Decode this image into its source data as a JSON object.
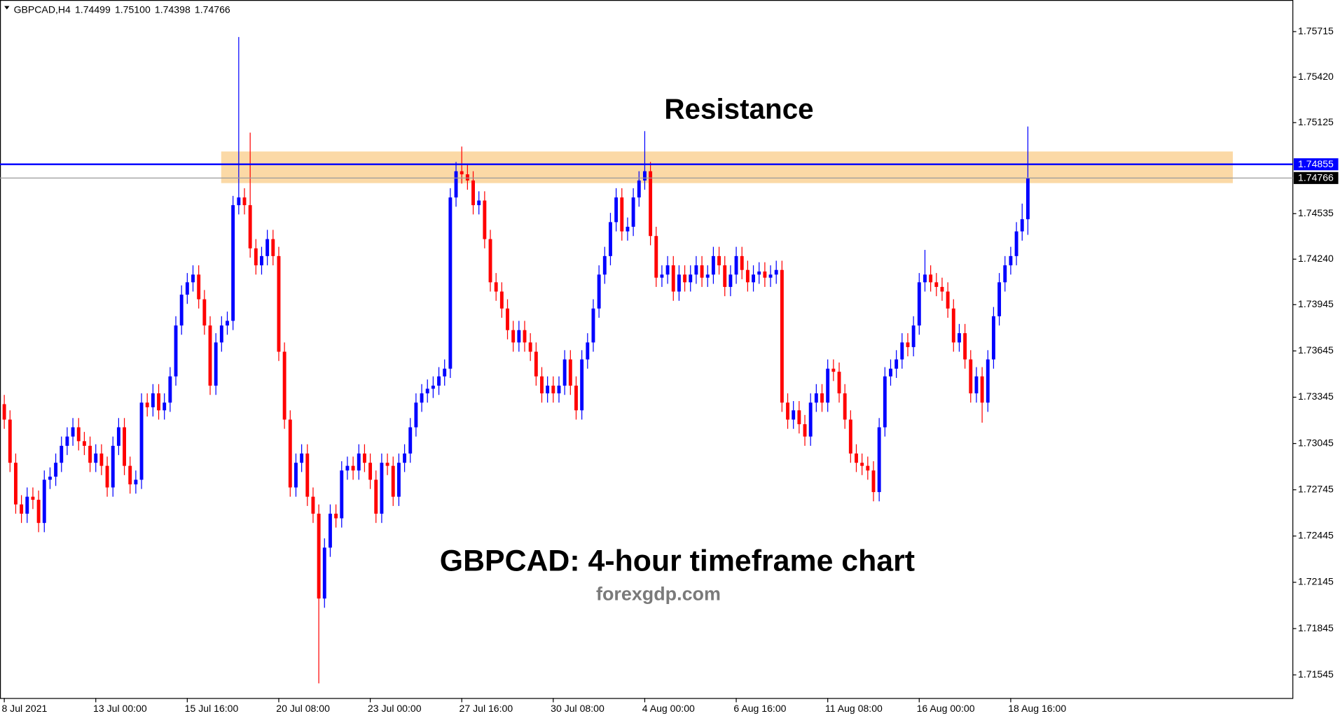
{
  "chart_data": {
    "type": "candlestick",
    "symbol": "GBPCAD,H4",
    "header_ohlc": [
      1.74499,
      {
        "value": 1.751,
        "label": "1.75100"
      },
      1.74398,
      1.74766
    ],
    "annotations": [
      "Resistance",
      "GBPCAD: 4-hour timeframe chart",
      "forexgdp.com"
    ],
    "up_color": "#0000ff",
    "down_color": "#ff0000",
    "ylim": [
      1.71395,
      1.7592
    ],
    "yticks": [
      1.75715,
      {
        "value": 1.7542,
        "label": "1.75420"
      },
      1.75125,
      1.74535,
      {
        "value": 1.7424,
        "label": "1.74240"
      },
      1.73945,
      1.73645,
      1.73345,
      1.73045,
      1.72745,
      1.72445,
      1.72145,
      1.71845,
      1.71545
    ],
    "price_lines": [
      {
        "value": 1.74855,
        "color": "#0000ff"
      },
      {
        "value": 1.74766,
        "color": "#9a9a9a"
      }
    ],
    "zone": {
      "from": 1.74733,
      "to": 1.74938,
      "color": "#fbd9a6"
    },
    "categories": [
      "8 Jul 2021",
      null,
      null,
      null,
      null,
      null,
      null,
      null,
      null,
      null,
      null,
      null,
      null,
      null,
      null,
      null,
      "13 Jul 00:00",
      null,
      null,
      null,
      null,
      null,
      null,
      null,
      null,
      null,
      null,
      null,
      null,
      null,
      null,
      null,
      "15 Jul 16:00",
      null,
      null,
      null,
      null,
      null,
      null,
      null,
      null,
      null,
      null,
      null,
      null,
      null,
      null,
      null,
      "20 Jul 08:00",
      null,
      null,
      null,
      null,
      null,
      null,
      null,
      null,
      null,
      null,
      null,
      null,
      null,
      null,
      null,
      "23 Jul 00:00",
      null,
      null,
      null,
      null,
      null,
      null,
      null,
      null,
      null,
      null,
      null,
      null,
      null,
      null,
      null,
      "27 Jul 16:00",
      null,
      null,
      null,
      null,
      null,
      null,
      null,
      null,
      null,
      null,
      null,
      null,
      null,
      null,
      null,
      "30 Jul 08:00",
      null,
      null,
      null,
      null,
      null,
      null,
      null,
      null,
      null,
      null,
      null,
      null,
      null,
      null,
      null,
      "4 Aug 00:00",
      null,
      null,
      null,
      null,
      null,
      null,
      null,
      null,
      null,
      null,
      null,
      null,
      null,
      null,
      null,
      "6 Aug 16:00",
      null,
      null,
      null,
      null,
      null,
      null,
      null,
      null,
      null,
      null,
      null,
      null,
      null,
      null,
      null,
      "11 Aug 08:00",
      null,
      null,
      null,
      null,
      null,
      null,
      null,
      null,
      null,
      null,
      null,
      null,
      null,
      null,
      null,
      "16 Aug 00:00",
      null,
      null,
      null,
      null,
      null,
      null,
      null,
      null,
      null,
      null,
      null,
      null,
      null,
      null,
      null,
      "18 Aug 16:00",
      null,
      null,
      null
    ],
    "open": [
      1.733,
      1.732,
      1.7292,
      1.7265,
      1.7259,
      1.727,
      1.7268,
      1.7253,
      1.7281,
      1.7283,
      1.7292,
      1.7303,
      1.7309,
      1.7315,
      1.7306,
      1.7303,
      1.7292,
      1.7298,
      1.729,
      1.7276,
      1.7303,
      1.7315,
      1.729,
      1.7278,
      1.7281,
      1.7331,
      1.7328,
      1.7337,
      1.7326,
      1.7331,
      1.7348,
      1.7381,
      1.7401,
      1.7409,
      1.7414,
      1.7398,
      1.7381,
      1.7342,
      1.737,
      1.7381,
      1.7384,
      1.7459,
      1.7464,
      1.7459,
      1.7431,
      1.742,
      1.7426,
      1.7437,
      1.7426,
      1.7364,
      1.732,
      1.7276,
      1.7292,
      1.7298,
      1.727,
      1.7259,
      1.7204,
      1.7237,
      1.7259,
      1.7256,
      1.7287,
      1.729,
      1.7287,
      1.7298,
      1.7292,
      1.7281,
      1.7259,
      1.7292,
      1.729,
      1.727,
      1.7292,
      1.7298,
      1.7315,
      1.7331,
      1.7337,
      1.734,
      1.7342,
      1.7348,
      1.7353,
      1.7464,
      1.7481,
      1.7479,
      1.7475,
      1.7459,
      1.7462,
      1.7437,
      1.7409,
      1.7403,
      1.7392,
      1.7378,
      1.737,
      1.7378,
      1.737,
      1.7364,
      1.7348,
      1.7337,
      1.7342,
      1.7337,
      1.7342,
      1.7359,
      1.7342,
      1.7326,
      1.7359,
      1.737,
      1.7392,
      1.7414,
      1.7426,
      1.7448,
      1.7464,
      1.7442,
      1.7445,
      1.7464,
      1.7475,
      1.7481,
      1.7439,
      1.7412,
      1.7414,
      1.742,
      1.7403,
      1.7414,
      1.7409,
      1.7414,
      1.742,
      1.7412,
      1.7414,
      1.7426,
      1.742,
      1.7406,
      1.7414,
      1.7426,
      1.7417,
      1.7409,
      1.7414,
      1.7416,
      1.7412,
      1.7414,
      1.7417,
      1.7331,
      1.732,
      1.7326,
      1.7317,
      1.7309,
      1.7331,
      1.7337,
      1.7331,
      1.7353,
      1.7351,
      1.7337,
      1.732,
      1.7298,
      1.7292,
      1.729,
      1.7287,
      1.7273,
      1.7315,
      1.7348,
      1.7353,
      1.7359,
      1.737,
      1.7367,
      1.7381,
      1.7409,
      1.7414,
      1.7409,
      1.7406,
      1.7403,
      1.7392,
      1.737,
      1.7376,
      1.7359,
      1.7337,
      1.7348,
      1.7331,
      1.7359,
      1.7387,
      1.7409,
      1.742,
      1.7426,
      1.7442,
      1.74499
    ],
    "high": [
      1.7336,
      1.7326,
      1.7298,
      1.7271,
      1.7276,
      1.7276,
      1.7274,
      1.7287,
      1.7289,
      1.7298,
      1.7309,
      1.7315,
      1.7321,
      1.7321,
      1.7312,
      1.7309,
      1.7304,
      1.7304,
      1.7296,
      1.7309,
      1.7321,
      1.7321,
      1.7296,
      1.7287,
      1.7337,
      1.7337,
      1.7343,
      1.7343,
      1.7337,
      1.7354,
      1.7387,
      1.7407,
      1.7415,
      1.742,
      1.742,
      1.7404,
      1.7387,
      1.7376,
      1.7387,
      1.739,
      1.7465,
      1.7568,
      1.747,
      1.7506,
      1.7437,
      1.7432,
      1.7443,
      1.7443,
      1.7432,
      1.737,
      1.7326,
      1.7298,
      1.7304,
      1.7304,
      1.7276,
      1.7265,
      1.7243,
      1.7265,
      1.7265,
      1.7293,
      1.7296,
      1.7296,
      1.7304,
      1.7304,
      1.7298,
      1.7287,
      1.7298,
      1.7298,
      1.7296,
      1.7298,
      1.7304,
      1.7321,
      1.7337,
      1.7343,
      1.7346,
      1.7348,
      1.7354,
      1.7359,
      1.747,
      1.7487,
      1.7497,
      1.7485,
      1.7481,
      1.7468,
      1.7468,
      1.7443,
      1.7415,
      1.7409,
      1.7398,
      1.7384,
      1.7384,
      1.7384,
      1.7376,
      1.737,
      1.7354,
      1.7348,
      1.7348,
      1.7348,
      1.7365,
      1.7365,
      1.7348,
      1.7365,
      1.7376,
      1.7398,
      1.742,
      1.7432,
      1.7454,
      1.747,
      1.747,
      1.7451,
      1.747,
      1.7481,
      1.7507,
      1.7487,
      1.7445,
      1.742,
      1.7426,
      1.7426,
      1.742,
      1.742,
      1.742,
      1.7426,
      1.7426,
      1.742,
      1.7432,
      1.7432,
      1.7426,
      1.742,
      1.7432,
      1.7432,
      1.7423,
      1.742,
      1.7422,
      1.7422,
      1.742,
      1.7423,
      1.7423,
      1.7337,
      1.7332,
      1.7332,
      1.7323,
      1.7337,
      1.7343,
      1.7343,
      1.7359,
      1.7359,
      1.7357,
      1.7343,
      1.7326,
      1.7304,
      1.7298,
      1.7296,
      1.7293,
      1.7321,
      1.7354,
      1.7359,
      1.7365,
      1.7376,
      1.7376,
      1.7387,
      1.7415,
      1.743,
      1.742,
      1.7415,
      1.7412,
      1.7409,
      1.7398,
      1.7382,
      1.7382,
      1.7365,
      1.7354,
      1.7354,
      1.7365,
      1.7393,
      1.7415,
      1.7426,
      1.7432,
      1.7448,
      1.746,
      1.751
    ],
    "low": [
      1.7314,
      1.7286,
      1.7259,
      1.7253,
      1.7253,
      1.7262,
      1.7247,
      1.7247,
      1.7275,
      1.7277,
      1.7286,
      1.7297,
      1.7303,
      1.73,
      1.7297,
      1.7286,
      1.7286,
      1.7284,
      1.727,
      1.727,
      1.7297,
      1.7284,
      1.7272,
      1.7272,
      1.7275,
      1.7322,
      1.7322,
      1.732,
      1.732,
      1.7325,
      1.7342,
      1.7375,
      1.7395,
      1.7403,
      1.7392,
      1.7375,
      1.7336,
      1.7336,
      1.7364,
      1.7375,
      1.7378,
      1.7453,
      1.7453,
      1.7425,
      1.7414,
      1.7414,
      1.742,
      1.742,
      1.7358,
      1.7314,
      1.727,
      1.727,
      1.7286,
      1.7264,
      1.7253,
      1.7149,
      1.7198,
      1.7231,
      1.725,
      1.725,
      1.7281,
      1.7281,
      1.7281,
      1.7286,
      1.7275,
      1.7253,
      1.7253,
      1.7284,
      1.7264,
      1.7264,
      1.7286,
      1.7292,
      1.7309,
      1.7325,
      1.7331,
      1.7334,
      1.7336,
      1.7342,
      1.7347,
      1.7458,
      1.7473,
      1.7469,
      1.7453,
      1.7453,
      1.7431,
      1.7403,
      1.7397,
      1.7386,
      1.7372,
      1.7364,
      1.7364,
      1.7364,
      1.7358,
      1.7342,
      1.7331,
      1.7331,
      1.7331,
      1.7331,
      1.7336,
      1.7336,
      1.732,
      1.732,
      1.7353,
      1.7364,
      1.7386,
      1.7408,
      1.742,
      1.7442,
      1.7436,
      1.7436,
      1.7439,
      1.7458,
      1.7469,
      1.7433,
      1.7406,
      1.7406,
      1.7408,
      1.7397,
      1.7397,
      1.7403,
      1.7403,
      1.7408,
      1.7406,
      1.7406,
      1.7408,
      1.7414,
      1.74,
      1.74,
      1.7408,
      1.7411,
      1.7403,
      1.7403,
      1.7408,
      1.7406,
      1.7406,
      1.7408,
      1.7325,
      1.7314,
      1.7314,
      1.7311,
      1.7303,
      1.7303,
      1.7325,
      1.7325,
      1.7325,
      1.7345,
      1.7331,
      1.7314,
      1.7292,
      1.7286,
      1.7284,
      1.7281,
      1.7267,
      1.7267,
      1.7309,
      1.7342,
      1.7347,
      1.7353,
      1.7361,
      1.7361,
      1.7375,
      1.7403,
      1.7403,
      1.74,
      1.7397,
      1.7386,
      1.7364,
      1.7364,
      1.7353,
      1.7331,
      1.7331,
      1.7318,
      1.7325,
      1.7353,
      1.7381,
      1.7403,
      1.7414,
      1.742,
      1.7436,
      1.74398
    ],
    "close": [
      1.732,
      1.7292,
      1.7265,
      1.7259,
      1.727,
      1.7268,
      1.7253,
      1.7281,
      1.7283,
      1.7292,
      1.7303,
      1.7309,
      1.7315,
      1.7306,
      1.7303,
      1.7292,
      1.7298,
      1.729,
      1.7276,
      1.7303,
      1.7315,
      1.729,
      1.7278,
      1.7281,
      1.7331,
      1.7328,
      1.7337,
      1.7326,
      1.7331,
      1.7348,
      1.7381,
      1.7401,
      1.7409,
      1.7414,
      1.7398,
      1.7381,
      1.7342,
      1.737,
      1.7381,
      1.7384,
      1.7459,
      1.7464,
      1.7459,
      1.7431,
      1.742,
      1.7426,
      1.7437,
      1.7426,
      1.7364,
      1.732,
      1.7276,
      1.7292,
      1.7298,
      1.727,
      1.7259,
      1.7204,
      1.7237,
      1.7259,
      1.7256,
      1.7287,
      1.729,
      1.7287,
      1.7298,
      1.7292,
      1.7281,
      1.7259,
      1.7292,
      1.729,
      1.727,
      1.7292,
      1.7298,
      1.7315,
      1.7331,
      1.7337,
      1.734,
      1.7342,
      1.7348,
      1.7353,
      1.7464,
      1.7481,
      1.7479,
      1.7475,
      1.7459,
      1.7462,
      1.7437,
      1.7409,
      1.7403,
      1.7392,
      1.7378,
      1.737,
      1.7378,
      1.737,
      1.7364,
      1.7348,
      1.7337,
      1.7342,
      1.7337,
      1.7342,
      1.7359,
      1.7342,
      1.7326,
      1.7359,
      1.737,
      1.7392,
      1.7414,
      1.7426,
      1.7448,
      1.7464,
      1.7442,
      1.7445,
      1.7464,
      1.7475,
      1.7481,
      1.7439,
      1.7412,
      1.7414,
      1.742,
      1.7403,
      1.7414,
      1.7409,
      1.7414,
      1.742,
      1.7412,
      1.7414,
      1.7426,
      1.742,
      1.7406,
      1.7414,
      1.7426,
      1.7417,
      1.7409,
      1.7414,
      1.7416,
      1.7412,
      1.7414,
      1.7417,
      1.7331,
      1.732,
      1.7326,
      1.7317,
      1.7309,
      1.7331,
      1.7337,
      1.7331,
      1.7353,
      1.7351,
      1.7337,
      1.732,
      1.7298,
      1.7292,
      1.729,
      1.7287,
      1.7273,
      1.7315,
      1.7348,
      1.7353,
      1.7359,
      1.737,
      1.7367,
      1.7381,
      1.7409,
      1.7414,
      1.7409,
      1.7406,
      1.7403,
      1.7392,
      1.737,
      1.7376,
      1.7359,
      1.7337,
      1.7348,
      1.7331,
      1.7359,
      1.7387,
      1.7409,
      1.742,
      1.7426,
      1.7442,
      1.74499,
      1.74766
    ]
  }
}
